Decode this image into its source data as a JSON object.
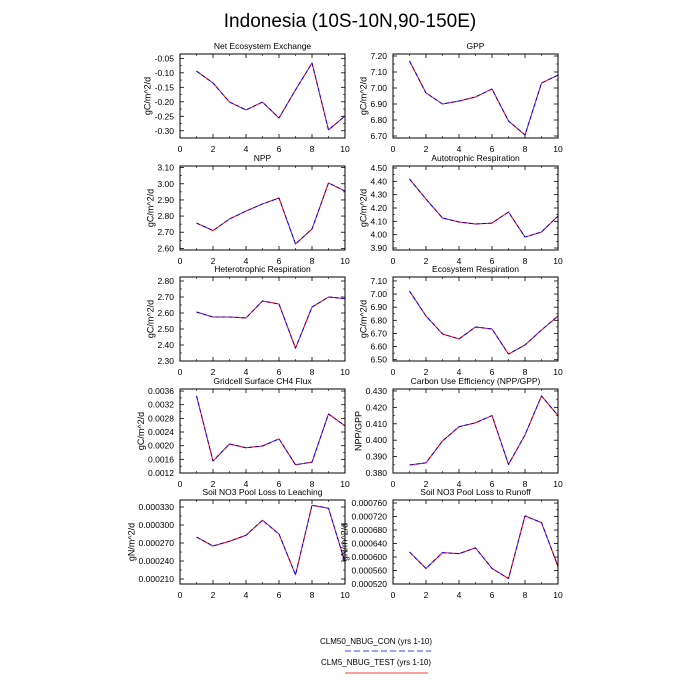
{
  "title": "Indonesia (10S-10N,90-150E)",
  "chart_data": [
    {
      "type": "line",
      "title": "Net Ecosystem Exchange",
      "xlabel": "",
      "ylabel": "gC/m^2/d",
      "x": [
        1,
        2,
        3,
        4,
        5,
        6,
        7,
        8,
        9,
        10
      ],
      "xlim": [
        0,
        10
      ],
      "xticks": [
        "0",
        "2",
        "4",
        "6",
        "8",
        "10"
      ],
      "ylim": [
        -0.325,
        -0.035
      ],
      "yticks": [
        "-0.05",
        "-0.10",
        "-0.15",
        "-0.20",
        "-0.25",
        "-0.30"
      ],
      "series": [
        {
          "name": "CLM50_NBUG_CON (yrs 1-10)",
          "color": "#0000ff",
          "values": [
            -0.094,
            -0.135,
            -0.201,
            -0.228,
            -0.201,
            -0.256,
            -0.159,
            -0.066,
            -0.297,
            -0.249
          ]
        },
        {
          "name": "CLM5_NBUG_TEST (yrs 1-10)",
          "color": "#ff0000",
          "values": [
            -0.094,
            -0.135,
            -0.201,
            -0.228,
            -0.201,
            -0.256,
            -0.159,
            -0.066,
            -0.297,
            -0.249
          ]
        }
      ]
    },
    {
      "type": "line",
      "title": "GPP",
      "xlabel": "",
      "ylabel": "gC/m^2/d",
      "x": [
        1,
        2,
        3,
        4,
        5,
        6,
        7,
        8,
        9,
        10
      ],
      "xlim": [
        0,
        10
      ],
      "xticks": [
        "0",
        "2",
        "4",
        "6",
        "8",
        "10"
      ],
      "ylim": [
        6.6875,
        7.2125
      ],
      "yticks": [
        "7.20",
        "7.10",
        "7.00",
        "6.90",
        "6.80",
        "6.70"
      ],
      "series": [
        {
          "name": "CLM50_NBUG_CON (yrs 1-10)",
          "color": "#0000ff",
          "values": [
            7.169,
            6.969,
            6.9,
            6.919,
            6.944,
            6.994,
            6.794,
            6.706,
            7.031,
            7.081
          ]
        },
        {
          "name": "CLM5_NBUG_TEST (yrs 1-10)",
          "color": "#ff0000",
          "values": [
            7.169,
            6.969,
            6.9,
            6.919,
            6.944,
            6.994,
            6.794,
            6.706,
            7.031,
            7.081
          ]
        }
      ]
    },
    {
      "type": "line",
      "title": "NPP",
      "xlabel": "",
      "ylabel": "gC/m^2/d",
      "x": [
        1,
        2,
        3,
        4,
        5,
        6,
        7,
        8,
        9,
        10
      ],
      "xlim": [
        0,
        10
      ],
      "xticks": [
        "0",
        "2",
        "4",
        "6",
        "8",
        "10"
      ],
      "ylim": [
        2.59,
        3.11
      ],
      "yticks": [
        "3.10",
        "3.00",
        "2.90",
        "2.80",
        "2.70",
        "2.60"
      ],
      "series": [
        {
          "name": "CLM50_NBUG_CON (yrs 1-10)",
          "color": "#0000ff",
          "values": [
            2.757,
            2.71,
            2.782,
            2.831,
            2.875,
            2.912,
            2.627,
            2.72,
            3.005,
            2.955
          ]
        },
        {
          "name": "CLM5_NBUG_TEST (yrs 1-10)",
          "color": "#ff0000",
          "values": [
            2.757,
            2.71,
            2.782,
            2.831,
            2.875,
            2.912,
            2.627,
            2.72,
            3.005,
            2.955
          ]
        }
      ]
    },
    {
      "type": "line",
      "title": "Autotrophic Respiration",
      "xlabel": "",
      "ylabel": "gC/m^2/d",
      "x": [
        1,
        2,
        3,
        4,
        5,
        6,
        7,
        8,
        9,
        10
      ],
      "xlim": [
        0,
        10
      ],
      "xticks": [
        "0",
        "2",
        "4",
        "6",
        "8",
        "10"
      ],
      "ylim": [
        3.885,
        4.515
      ],
      "yticks": [
        "4.50",
        "4.40",
        "4.30",
        "4.20",
        "4.10",
        "4.00",
        "3.90"
      ],
      "series": [
        {
          "name": "CLM50_NBUG_CON (yrs 1-10)",
          "color": "#0000ff",
          "values": [
            4.417,
            4.267,
            4.125,
            4.095,
            4.08,
            4.087,
            4.17,
            3.982,
            4.02,
            4.14
          ]
        },
        {
          "name": "CLM5_NBUG_TEST (yrs 1-10)",
          "color": "#ff0000",
          "values": [
            4.417,
            4.267,
            4.125,
            4.095,
            4.08,
            4.087,
            4.17,
            3.982,
            4.02,
            4.14
          ]
        }
      ]
    },
    {
      "type": "line",
      "title": "Heterotrophic Respiration",
      "xlabel": "",
      "ylabel": "gC/m^2/d",
      "x": [
        1,
        2,
        3,
        4,
        5,
        6,
        7,
        8,
        9,
        10
      ],
      "xlim": [
        0,
        10
      ],
      "xticks": [
        "0",
        "2",
        "4",
        "6",
        "8",
        "10"
      ],
      "ylim": [
        2.3,
        2.825
      ],
      "yticks": [
        "2.80",
        "2.70",
        "2.60",
        "2.50",
        "2.40",
        "2.30"
      ],
      "series": [
        {
          "name": "CLM50_NBUG_CON (yrs 1-10)",
          "color": "#0000ff",
          "values": [
            2.606,
            2.575,
            2.575,
            2.569,
            2.675,
            2.656,
            2.38,
            2.637,
            2.7,
            2.69
          ]
        },
        {
          "name": "CLM5_NBUG_TEST (yrs 1-10)",
          "color": "#ff0000",
          "values": [
            2.606,
            2.575,
            2.575,
            2.569,
            2.675,
            2.656,
            2.38,
            2.637,
            2.7,
            2.69
          ]
        }
      ]
    },
    {
      "type": "line",
      "title": "Ecosystem Respiration",
      "xlabel": "",
      "ylabel": "gC/m^2/d",
      "x": [
        1,
        2,
        3,
        4,
        5,
        6,
        7,
        8,
        9,
        10
      ],
      "xlim": [
        0,
        10
      ],
      "xticks": [
        "0",
        "2",
        "4",
        "6",
        "8",
        "10"
      ],
      "ylim": [
        6.49,
        7.13
      ],
      "yticks": [
        "7.10",
        "7.00",
        "6.90",
        "6.80",
        "6.70",
        "6.60",
        "6.50"
      ],
      "series": [
        {
          "name": "CLM50_NBUG_CON (yrs 1-10)",
          "color": "#0000ff",
          "values": [
            7.023,
            6.833,
            6.696,
            6.658,
            6.749,
            6.734,
            6.543,
            6.612,
            6.726,
            6.833
          ]
        },
        {
          "name": "CLM5_NBUG_TEST (yrs 1-10)",
          "color": "#ff0000",
          "values": [
            7.023,
            6.833,
            6.696,
            6.658,
            6.749,
            6.734,
            6.543,
            6.612,
            6.726,
            6.833
          ]
        }
      ]
    },
    {
      "type": "line",
      "title": "Gridcell Surface CH4 Flux",
      "xlabel": "",
      "ylabel": "gC/m^2/d",
      "x": [
        1,
        2,
        3,
        4,
        5,
        6,
        7,
        8,
        9,
        10
      ],
      "xlim": [
        0,
        10
      ],
      "xticks": [
        "0",
        "2",
        "4",
        "6",
        "8",
        "10"
      ],
      "ylim": [
        0.0012,
        0.00366
      ],
      "yticks": [
        "0.0036",
        "0.0032",
        "0.0028",
        "0.0024",
        "0.0020",
        "0.0016",
        "0.0012"
      ],
      "series": [
        {
          "name": "CLM50_NBUG_CON (yrs 1-10)",
          "color": "#0000ff",
          "values": [
            0.00346,
            0.00155,
            0.00205,
            0.00194,
            0.00199,
            0.0022,
            0.00144,
            0.00152,
            0.00293,
            0.00258
          ]
        },
        {
          "name": "CLM5_NBUG_TEST (yrs 1-10)",
          "color": "#ff0000",
          "values": [
            0.00346,
            0.00155,
            0.00205,
            0.00194,
            0.00199,
            0.0022,
            0.00144,
            0.00152,
            0.00293,
            0.00258
          ]
        }
      ]
    },
    {
      "type": "line",
      "title": "Carbon Use Efficiency (NPP/GPP)",
      "xlabel": "",
      "ylabel": "NPP/GPP",
      "x": [
        1,
        2,
        3,
        4,
        5,
        6,
        7,
        8,
        9,
        10
      ],
      "xlim": [
        0,
        10
      ],
      "xticks": [
        "0",
        "2",
        "4",
        "6",
        "8",
        "10"
      ],
      "ylim": [
        0.38,
        0.4312
      ],
      "yticks": [
        "0.430",
        "0.420",
        "0.410",
        "0.400",
        "0.390",
        "0.380"
      ],
      "series": [
        {
          "name": "CLM50_NBUG_CON (yrs 1-10)",
          "color": "#0000ff",
          "values": [
            0.3849,
            0.3862,
            0.3995,
            0.4082,
            0.4106,
            0.415,
            0.3852,
            0.4032,
            0.427,
            0.415
          ]
        },
        {
          "name": "CLM5_NBUG_TEST (yrs 1-10)",
          "color": "#ff0000",
          "values": [
            0.3849,
            0.3862,
            0.3995,
            0.4082,
            0.4106,
            0.415,
            0.3852,
            0.4032,
            0.427,
            0.415
          ]
        }
      ]
    },
    {
      "type": "line",
      "title": "Soil NO3 Pool Loss to Leaching",
      "xlabel": "",
      "ylabel": "gN/m^2/d",
      "x": [
        1,
        2,
        3,
        4,
        5,
        6,
        7,
        8,
        9,
        10
      ],
      "xlim": [
        0,
        10
      ],
      "xticks": [
        "0",
        "2",
        "4",
        "6",
        "8",
        "10"
      ],
      "ylim": [
        0.0002017,
        0.0003417
      ],
      "yticks": [
        "0.000330",
        "0.000300",
        "0.000270",
        "0.000240",
        "0.000210"
      ],
      "series": [
        {
          "name": "CLM50_NBUG_CON (yrs 1-10)",
          "color": "#0000ff",
          "values": [
            0.00028,
            0.000265,
            0.000273,
            0.000283,
            0.000308,
            0.000285,
            0.000217,
            0.000333,
            0.000328,
            0.000238
          ]
        },
        {
          "name": "CLM5_NBUG_TEST (yrs 1-10)",
          "color": "#ff0000",
          "values": [
            0.00028,
            0.000265,
            0.000273,
            0.000283,
            0.000308,
            0.000285,
            0.000217,
            0.000333,
            0.000328,
            0.000238
          ]
        }
      ]
    },
    {
      "type": "line",
      "title": "Soil NO3 Pool Loss to Runoff",
      "xlabel": "",
      "ylabel": "gN/m^2/d",
      "x": [
        1,
        2,
        3,
        4,
        5,
        6,
        7,
        8,
        9,
        10
      ],
      "xlim": [
        0,
        10
      ],
      "xticks": [
        "0",
        "2",
        "4",
        "6",
        "8",
        "10"
      ],
      "ylim": [
        0.00052,
        0.000769
      ],
      "yticks": [
        "0.000760",
        "0.000720",
        "0.000680",
        "0.000640",
        "0.000600",
        "0.000560",
        "0.000520"
      ],
      "series": [
        {
          "name": "CLM50_NBUG_CON (yrs 1-10)",
          "color": "#0000ff",
          "values": [
            0.000615,
            0.000566,
            0.000613,
            0.00061,
            0.000627,
            0.000566,
            0.000536,
            0.000722,
            0.000702,
            0.000572
          ]
        },
        {
          "name": "CLM5_NBUG_TEST (yrs 1-10)",
          "color": "#ff0000",
          "values": [
            0.000615,
            0.000566,
            0.000613,
            0.00061,
            0.000627,
            0.000566,
            0.000536,
            0.000722,
            0.000702,
            0.000572
          ]
        }
      ]
    }
  ]
}
